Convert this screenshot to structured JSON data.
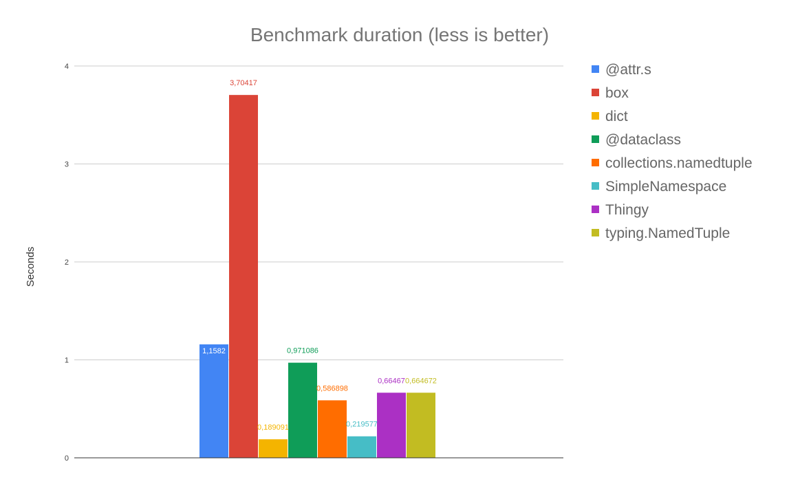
{
  "chart_data": {
    "type": "bar",
    "title": "Benchmark duration (less is better)",
    "xlabel": "",
    "ylabel": "Seconds",
    "ylim": [
      0,
      4
    ],
    "yticks": [
      0,
      1,
      2,
      3,
      4
    ],
    "ytick_labels": [
      "0",
      "1",
      "2",
      "3",
      "4"
    ],
    "grid": true,
    "legend_position": "right",
    "categories": [
      ""
    ],
    "series": [
      {
        "name": "@attr.s",
        "values": [
          1.1582
        ],
        "label": "1,1582",
        "color": "#4285f4",
        "label_inside": true
      },
      {
        "name": "box",
        "values": [
          3.70417
        ],
        "label": "3,70417",
        "color": "#db4437",
        "label_inside": false
      },
      {
        "name": "dict",
        "values": [
          0.189091
        ],
        "label": "0,189091",
        "color": "#f4b400",
        "label_inside": false
      },
      {
        "name": "@dataclass",
        "values": [
          0.971086
        ],
        "label": "0,971086",
        "color": "#0f9d58",
        "label_inside": false
      },
      {
        "name": "collections.namedtuple",
        "values": [
          0.586898
        ],
        "label": "0,586898",
        "color": "#ff6d00",
        "label_inside": false
      },
      {
        "name": "SimpleNamespace",
        "values": [
          0.219577
        ],
        "label": "0,219577",
        "color": "#46bdc6",
        "label_inside": false
      },
      {
        "name": "Thingy",
        "values": [
          0.66467
        ],
        "label": "0,66467",
        "color": "#ab30c4",
        "label_inside": false
      },
      {
        "name": "typing.NamedTuple",
        "values": [
          0.664672
        ],
        "label": "0,664672",
        "color": "#c2bc22",
        "label_inside": false
      }
    ]
  }
}
